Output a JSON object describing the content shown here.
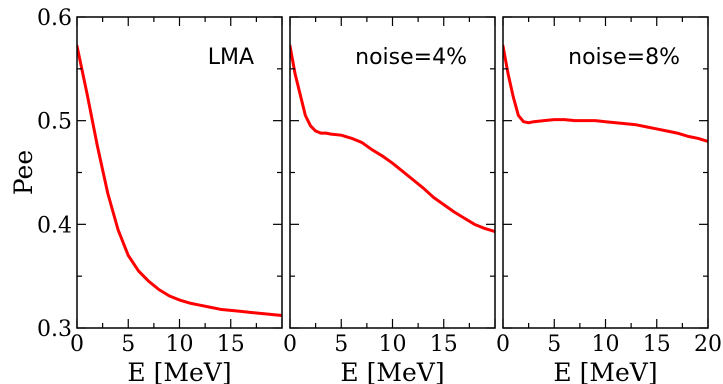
{
  "chart_data": [
    {
      "type": "line",
      "annotation": "LMA",
      "xlabel": "E [MeV]",
      "ylabel": "Pee",
      "xlim": [
        0,
        20
      ],
      "ylim": [
        0.3,
        0.6
      ],
      "xticks": [
        "0",
        "5",
        "10",
        "15"
      ],
      "yticks": [
        "0.3",
        "0.4",
        "0.5",
        "0.6"
      ],
      "grid": false,
      "line_color": "#ff0000",
      "series": [
        {
          "x": [
            0,
            1,
            2,
            3,
            4,
            5,
            6,
            7,
            8,
            9,
            10,
            11,
            12,
            13,
            14,
            15,
            16,
            17,
            18,
            19,
            20
          ],
          "values": [
            0.572,
            0.525,
            0.475,
            0.43,
            0.395,
            0.37,
            0.355,
            0.345,
            0.337,
            0.331,
            0.327,
            0.324,
            0.322,
            0.32,
            0.318,
            0.317,
            0.316,
            0.315,
            0.314,
            0.313,
            0.312
          ]
        }
      ]
    },
    {
      "type": "line",
      "annotation": "noise=4%",
      "xlabel": "E [MeV]",
      "xlim": [
        0,
        20
      ],
      "ylim": [
        0.3,
        0.6
      ],
      "xticks": [
        "0",
        "5",
        "10",
        "15"
      ],
      "grid": false,
      "line_color": "#ff0000",
      "series": [
        {
          "x": [
            0,
            0.5,
            1,
            1.5,
            2,
            2.5,
            3,
            3.5,
            4,
            5,
            6,
            7,
            8,
            9,
            10,
            11,
            12,
            13,
            14,
            15,
            16,
            17,
            18,
            19,
            20
          ],
          "values": [
            0.572,
            0.545,
            0.525,
            0.505,
            0.495,
            0.49,
            0.488,
            0.488,
            0.487,
            0.486,
            0.483,
            0.479,
            0.472,
            0.466,
            0.459,
            0.451,
            0.443,
            0.435,
            0.426,
            0.419,
            0.412,
            0.406,
            0.4,
            0.396,
            0.393
          ]
        }
      ]
    },
    {
      "type": "line",
      "annotation": "noise=8%",
      "xlabel": "E [MeV]",
      "xlim": [
        0,
        20
      ],
      "ylim": [
        0.3,
        0.6
      ],
      "xticks": [
        "0",
        "5",
        "10",
        "15",
        "20"
      ],
      "grid": false,
      "line_color": "#ff0000",
      "series": [
        {
          "x": [
            0,
            0.5,
            1,
            1.5,
            2,
            2.5,
            3,
            4,
            5,
            6,
            7,
            8,
            9,
            10,
            11,
            12,
            13,
            14,
            15,
            16,
            17,
            18,
            19,
            20
          ],
          "values": [
            0.572,
            0.545,
            0.523,
            0.505,
            0.499,
            0.498,
            0.499,
            0.5,
            0.501,
            0.501,
            0.5,
            0.5,
            0.5,
            0.499,
            0.498,
            0.497,
            0.496,
            0.494,
            0.492,
            0.49,
            0.488,
            0.485,
            0.483,
            0.48
          ]
        }
      ]
    }
  ]
}
